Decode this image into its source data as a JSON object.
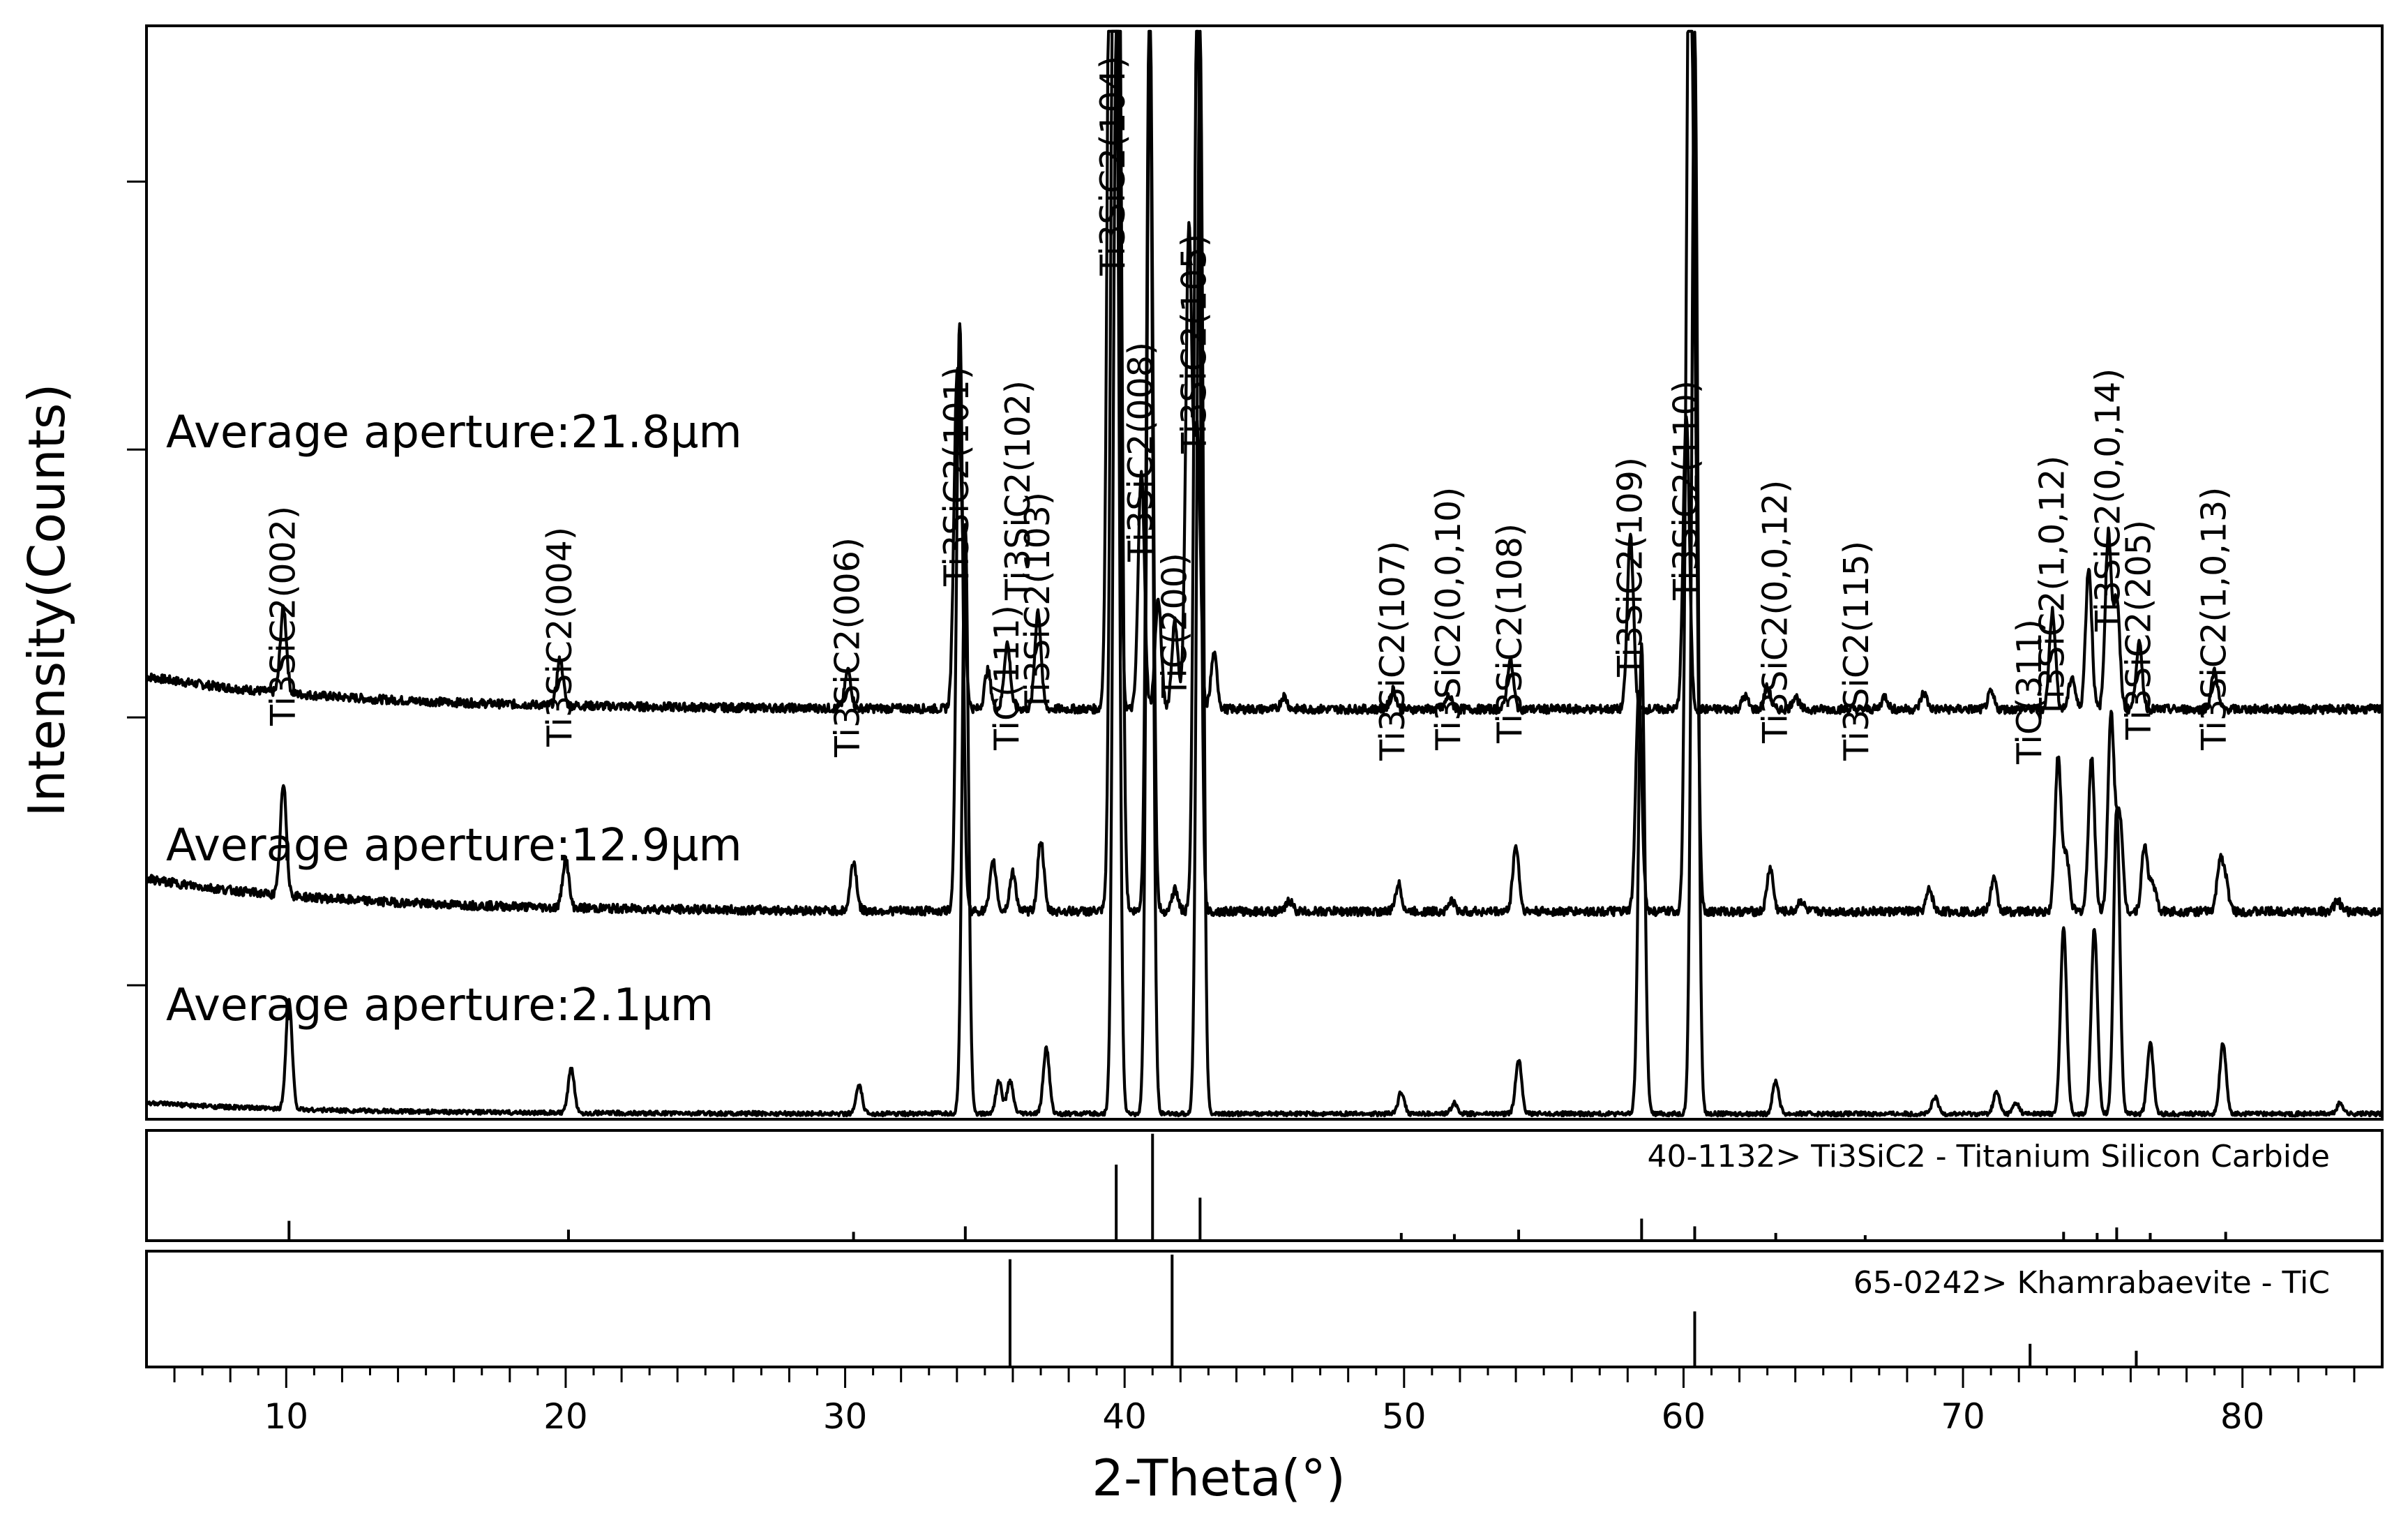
{
  "chart_data": {
    "type": "line",
    "xlabel": "2-Theta(°)",
    "ylabel": "Intensity(Counts)",
    "xlim": [
      5,
      85
    ],
    "xticks": [
      10,
      20,
      30,
      40,
      50,
      60,
      70,
      80
    ],
    "series": [
      {
        "name": "Average aperture:21.8μm",
        "baseline": 0.375,
        "peaks": [
          [
            9.9,
            0.078
          ],
          [
            19.8,
            0.042
          ],
          [
            30.1,
            0.035
          ],
          [
            34.0,
            0.29
          ],
          [
            34.2,
            0.11
          ],
          [
            35.1,
            0.035
          ],
          [
            35.8,
            0.06
          ],
          [
            36.9,
            0.09
          ],
          [
            39.5,
            0.86
          ],
          [
            39.7,
            0.83
          ],
          [
            40.6,
            0.22
          ],
          [
            41.2,
            0.1
          ],
          [
            41.8,
            0.08
          ],
          [
            42.3,
            0.44
          ],
          [
            42.6,
            0.25
          ],
          [
            43.2,
            0.05
          ],
          [
            45.7,
            0.012
          ],
          [
            49.6,
            0.018
          ],
          [
            51.6,
            0.012
          ],
          [
            53.8,
            0.045
          ],
          [
            58.1,
            0.16
          ],
          [
            60.1,
            0.27
          ],
          [
            62.2,
            0.012
          ],
          [
            63.0,
            0.02
          ],
          [
            64.0,
            0.012
          ],
          [
            67.2,
            0.012
          ],
          [
            68.6,
            0.015
          ],
          [
            71.0,
            0.015
          ],
          [
            73.2,
            0.09
          ],
          [
            73.9,
            0.03
          ],
          [
            74.5,
            0.13
          ],
          [
            75.2,
            0.16
          ],
          [
            75.5,
            0.1
          ],
          [
            76.3,
            0.06
          ],
          [
            79.0,
            0.035
          ]
        ]
      },
      {
        "name": "Average aperture:12.9μm",
        "baseline": 0.19,
        "peaks": [
          [
            9.9,
            0.1
          ],
          [
            20.0,
            0.045
          ],
          [
            30.3,
            0.045
          ],
          [
            34.1,
            0.54
          ],
          [
            35.3,
            0.045
          ],
          [
            36.0,
            0.035
          ],
          [
            37.0,
            0.065
          ],
          [
            39.6,
            0.86
          ],
          [
            39.8,
            0.83
          ],
          [
            40.9,
            0.86
          ],
          [
            41.8,
            0.02
          ],
          [
            42.6,
            0.86
          ],
          [
            45.9,
            0.01
          ],
          [
            49.8,
            0.025
          ],
          [
            51.7,
            0.01
          ],
          [
            54.0,
            0.06
          ],
          [
            58.4,
            0.2
          ],
          [
            60.2,
            0.86
          ],
          [
            60.4,
            0.4
          ],
          [
            63.1,
            0.04
          ],
          [
            64.2,
            0.01
          ],
          [
            68.8,
            0.02
          ],
          [
            71.1,
            0.03
          ],
          [
            73.4,
            0.14
          ],
          [
            73.7,
            0.05
          ],
          [
            74.6,
            0.14
          ],
          [
            75.3,
            0.18
          ],
          [
            75.6,
            0.09
          ],
          [
            76.5,
            0.06
          ],
          [
            76.8,
            0.025
          ],
          [
            79.2,
            0.045
          ],
          [
            79.4,
            0.025
          ],
          [
            83.4,
            0.01
          ]
        ]
      },
      {
        "name": "Average aperture:2.1μm",
        "baseline": 0.005,
        "peaks": [
          [
            10.1,
            0.1
          ],
          [
            20.2,
            0.04
          ],
          [
            30.5,
            0.025
          ],
          [
            34.3,
            0.54
          ],
          [
            35.5,
            0.03
          ],
          [
            35.9,
            0.03
          ],
          [
            37.2,
            0.06
          ],
          [
            39.7,
            0.99
          ],
          [
            40.9,
            0.99
          ],
          [
            42.7,
            0.99
          ],
          [
            49.9,
            0.02
          ],
          [
            51.8,
            0.01
          ],
          [
            54.1,
            0.05
          ],
          [
            58.5,
            0.43
          ],
          [
            60.4,
            0.99
          ],
          [
            63.3,
            0.03
          ],
          [
            69.0,
            0.015
          ],
          [
            71.2,
            0.02
          ],
          [
            71.9,
            0.01
          ],
          [
            73.6,
            0.17
          ],
          [
            74.7,
            0.17
          ],
          [
            75.5,
            0.28
          ],
          [
            76.7,
            0.065
          ],
          [
            79.3,
            0.065
          ],
          [
            83.5,
            0.01
          ]
        ]
      }
    ],
    "peak_labels": [
      {
        "text": "Ti3SiC2(002)",
        "x": 9.9
      },
      {
        "text": "Ti3SiC2(004)",
        "x": 19.8
      },
      {
        "text": "Ti3SiC2(006)",
        "x": 30.1
      },
      {
        "text": "Ti3SiC2(101)",
        "x": 34.0
      },
      {
        "text": "TiC(111)",
        "x": 35.8
      },
      {
        "text": "Ti3SiC2(102)",
        "x": 36.2
      },
      {
        "text": "Ti3SiC2(103)",
        "x": 36.9
      },
      {
        "text": "Ti3SiC2(104)",
        "x": 39.6
      },
      {
        "text": "Ti3SiC2(008)",
        "x": 40.6
      },
      {
        "text": "TiC(200)",
        "x": 41.8
      },
      {
        "text": "Ti3SiC2(105)",
        "x": 42.5
      },
      {
        "text": "Ti3SiC2(107)",
        "x": 49.6
      },
      {
        "text": "Ti3SiC2(0,0,10)",
        "x": 51.6
      },
      {
        "text": "Ti3SiC2(108)",
        "x": 53.8
      },
      {
        "text": "Ti3SiC2(109)",
        "x": 58.1
      },
      {
        "text": "Ti3SiC2(110)",
        "x": 60.1
      },
      {
        "text": "Ti3SiC2(0,0,12)",
        "x": 63.3
      },
      {
        "text": "Ti3SiC2(115)",
        "x": 66.2
      },
      {
        "text": "TiC(311)",
        "x": 72.4
      },
      {
        "text": "Ti3SiC2(1,0,12)",
        "x": 73.2
      },
      {
        "text": "Ti3SiC2(0,0,14)",
        "x": 75.2
      },
      {
        "text": "Ti3SiC2(205)",
        "x": 76.3
      },
      {
        "text": "Ti3SiC2(1,0,13)",
        "x": 79.0
      }
    ],
    "reference_patterns": [
      {
        "label": "40-1132> Ti3SiC2 - Titanium Silicon Carbide",
        "lines": [
          [
            10.1,
            0.18
          ],
          [
            20.1,
            0.1
          ],
          [
            30.3,
            0.08
          ],
          [
            34.3,
            0.13
          ],
          [
            39.7,
            0.69
          ],
          [
            41.0,
            0.97
          ],
          [
            42.7,
            0.39
          ],
          [
            49.9,
            0.07
          ],
          [
            51.8,
            0.06
          ],
          [
            54.1,
            0.1
          ],
          [
            58.5,
            0.2
          ],
          [
            60.4,
            0.13
          ],
          [
            63.3,
            0.07
          ],
          [
            66.5,
            0.05
          ],
          [
            73.6,
            0.08
          ],
          [
            74.8,
            0.07
          ],
          [
            75.5,
            0.12
          ],
          [
            76.7,
            0.07
          ],
          [
            79.4,
            0.08
          ]
        ]
      },
      {
        "label": "65-0242> Khamrabaevite - TiC",
        "lines": [
          [
            35.9,
            0.93
          ],
          [
            41.7,
            0.97
          ],
          [
            60.4,
            0.48
          ],
          [
            72.4,
            0.2
          ],
          [
            76.2,
            0.14
          ]
        ]
      }
    ],
    "grid": false
  }
}
